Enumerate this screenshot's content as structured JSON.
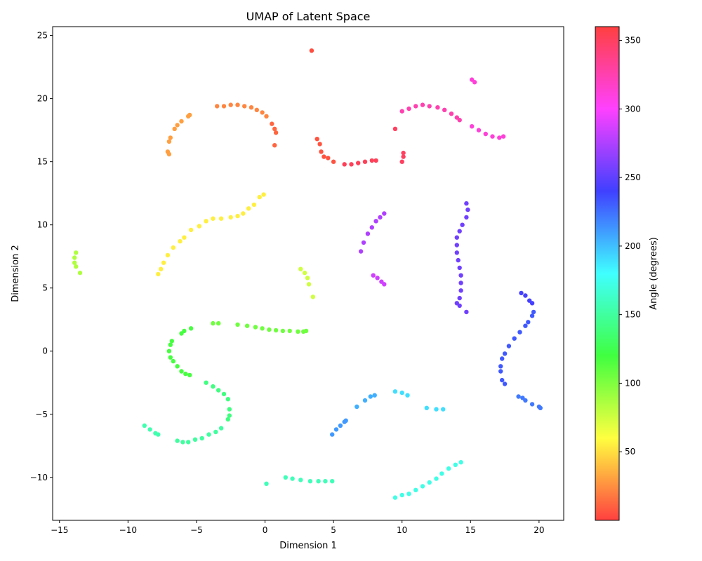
{
  "chart_data": {
    "type": "scatter",
    "title": "UMAP of Latent Space",
    "xlabel": "Dimension 1",
    "ylabel": "Dimension 2",
    "xlim": [
      -15.5,
      21.8
    ],
    "ylim": [
      -13.4,
      25.7
    ],
    "xticks": [
      -15,
      -10,
      -5,
      0,
      5,
      10,
      15,
      20
    ],
    "xtick_labels": [
      "−15",
      "−10",
      "−5",
      "0",
      "5",
      "10",
      "15",
      "20"
    ],
    "yticks": [
      -10,
      -5,
      0,
      5,
      10,
      15,
      20,
      25
    ],
    "ytick_labels": [
      "−10",
      "−5",
      "0",
      "5",
      "10",
      "15",
      "20",
      "25"
    ],
    "grid": false,
    "colormap": "hsv",
    "colorbar": {
      "label": "Angle (degrees)",
      "range": [
        0,
        360
      ],
      "ticks": [
        50,
        100,
        150,
        200,
        250,
        300,
        350
      ],
      "tick_labels": [
        "50",
        "100",
        "150",
        "200",
        "250",
        "300",
        "350"
      ]
    },
    "series": [
      {
        "angle": 4,
        "points": [
          [
            3.4,
            23.8
          ]
        ]
      },
      {
        "angle": 6,
        "points": [
          [
            3.8,
            16.8
          ],
          [
            4.0,
            16.4
          ],
          [
            4.1,
            15.8
          ],
          [
            4.3,
            15.4
          ],
          [
            4.6,
            15.3
          ],
          [
            5.0,
            15.0
          ]
        ]
      },
      {
        "angle": 352,
        "points": [
          [
            5.8,
            14.8
          ],
          [
            6.3,
            14.8
          ],
          [
            6.8,
            14.9
          ],
          [
            7.3,
            15.0
          ],
          [
            7.8,
            15.1
          ],
          [
            8.1,
            15.1
          ]
        ]
      },
      {
        "angle": 350,
        "points": [
          [
            9.5,
            17.6
          ],
          [
            10.0,
            15.0
          ],
          [
            10.1,
            15.4
          ],
          [
            10.1,
            15.7
          ]
        ]
      },
      {
        "angle": 12,
        "points": [
          [
            0.7,
            16.3
          ],
          [
            0.8,
            17.3
          ],
          [
            0.7,
            17.6
          ],
          [
            0.5,
            18.0
          ]
        ]
      },
      {
        "angle": 22,
        "points": [
          [
            -3.5,
            19.4
          ],
          [
            -3.0,
            19.4
          ],
          [
            -2.5,
            19.5
          ],
          [
            -2.0,
            19.5
          ],
          [
            -1.5,
            19.4
          ],
          [
            -1.0,
            19.3
          ],
          [
            -0.6,
            19.1
          ],
          [
            -0.2,
            18.9
          ],
          [
            0.1,
            18.6
          ]
        ]
      },
      {
        "angle": 30,
        "points": [
          [
            -7.0,
            15.6
          ],
          [
            -7.1,
            15.8
          ],
          [
            -7.0,
            16.6
          ],
          [
            -6.9,
            16.9
          ],
          [
            -6.6,
            17.6
          ],
          [
            -6.4,
            17.9
          ],
          [
            -6.1,
            18.2
          ],
          [
            -5.6,
            18.6
          ],
          [
            -5.5,
            18.7
          ]
        ]
      },
      {
        "angle": 55,
        "points": [
          [
            -0.1,
            12.4
          ],
          [
            -0.4,
            12.2
          ],
          [
            -0.8,
            11.6
          ],
          [
            -1.2,
            11.3
          ],
          [
            -1.6,
            10.9
          ],
          [
            -2.0,
            10.7
          ],
          [
            -2.5,
            10.6
          ],
          [
            -3.2,
            10.5
          ],
          [
            -3.8,
            10.5
          ],
          [
            -4.3,
            10.3
          ],
          [
            -4.8,
            9.9
          ],
          [
            -5.4,
            9.6
          ],
          [
            -5.9,
            9.0
          ],
          [
            -6.2,
            8.7
          ],
          [
            -6.7,
            8.2
          ],
          [
            -7.1,
            7.6
          ],
          [
            -7.4,
            7.0
          ],
          [
            -7.6,
            6.5
          ],
          [
            -7.8,
            6.1
          ]
        ]
      },
      {
        "angle": 75,
        "points": [
          [
            2.6,
            6.5
          ],
          [
            2.9,
            6.2
          ],
          [
            3.1,
            5.8
          ],
          [
            3.2,
            5.3
          ],
          [
            3.5,
            4.3
          ]
        ]
      },
      {
        "angle": 85,
        "points": [
          [
            -13.8,
            7.8
          ],
          [
            -13.9,
            7.4
          ],
          [
            -13.9,
            7.0
          ],
          [
            -13.8,
            6.7
          ],
          [
            -13.5,
            6.2
          ]
        ]
      },
      {
        "angle": 105,
        "points": [
          [
            -3.8,
            2.2
          ],
          [
            -3.4,
            2.2
          ],
          [
            -2.0,
            2.1
          ],
          [
            -1.3,
            2.0
          ],
          [
            -0.7,
            1.9
          ],
          [
            -0.2,
            1.8
          ],
          [
            0.3,
            1.7
          ],
          [
            0.8,
            1.65
          ],
          [
            1.3,
            1.6
          ],
          [
            1.8,
            1.6
          ],
          [
            2.4,
            1.55
          ],
          [
            2.8,
            1.55
          ],
          [
            3.0,
            1.6
          ]
        ]
      },
      {
        "angle": 118,
        "points": [
          [
            -5.4,
            1.8
          ],
          [
            -5.9,
            1.6
          ],
          [
            -6.1,
            1.4
          ],
          [
            -6.8,
            0.8
          ],
          [
            -6.9,
            0.5
          ],
          [
            -7.0,
            0.0
          ],
          [
            -6.9,
            -0.5
          ],
          [
            -6.7,
            -0.8
          ],
          [
            -6.4,
            -1.2
          ],
          [
            -6.1,
            -1.6
          ],
          [
            -5.8,
            -1.8
          ],
          [
            -5.5,
            -1.9
          ]
        ]
      },
      {
        "angle": 140,
        "points": [
          [
            -4.3,
            -2.5
          ],
          [
            -3.8,
            -2.8
          ],
          [
            -3.4,
            -3.1
          ],
          [
            -3.0,
            -3.4
          ],
          [
            -2.7,
            -3.8
          ],
          [
            -2.6,
            -4.6
          ],
          [
            -2.6,
            -5.1
          ],
          [
            -2.7,
            -5.4
          ]
        ]
      },
      {
        "angle": 150,
        "points": [
          [
            -3.2,
            -6.1
          ],
          [
            -3.6,
            -6.4
          ],
          [
            -4.1,
            -6.6
          ],
          [
            -4.6,
            -6.9
          ],
          [
            -5.1,
            -7.0
          ],
          [
            -5.6,
            -7.2
          ],
          [
            -6.0,
            -7.2
          ],
          [
            -6.4,
            -7.1
          ]
        ]
      },
      {
        "angle": 155,
        "points": [
          [
            -8.8,
            -5.9
          ],
          [
            -8.4,
            -6.2
          ],
          [
            -8.0,
            -6.5
          ],
          [
            -7.8,
            -6.6
          ]
        ]
      },
      {
        "angle": 158,
        "points": [
          [
            0.1,
            -10.5
          ],
          [
            1.5,
            -10.0
          ],
          [
            2.0,
            -10.1
          ],
          [
            2.6,
            -10.2
          ],
          [
            3.3,
            -10.3
          ],
          [
            3.9,
            -10.3
          ],
          [
            4.4,
            -10.3
          ],
          [
            4.9,
            -10.3
          ]
        ]
      },
      {
        "angle": 172,
        "points": [
          [
            9.5,
            -11.6
          ],
          [
            10.0,
            -11.4
          ],
          [
            10.5,
            -11.3
          ],
          [
            11.0,
            -11.0
          ],
          [
            11.5,
            -10.7
          ],
          [
            12.0,
            -10.4
          ],
          [
            12.5,
            -10.1
          ],
          [
            12.9,
            -9.7
          ],
          [
            13.4,
            -9.3
          ],
          [
            13.9,
            -9.0
          ],
          [
            14.3,
            -8.8
          ]
        ]
      },
      {
        "angle": 190,
        "points": [
          [
            9.5,
            -3.2
          ],
          [
            10.0,
            -3.3
          ],
          [
            10.4,
            -3.5
          ],
          [
            11.8,
            -4.5
          ],
          [
            12.5,
            -4.6
          ],
          [
            13.0,
            -4.6
          ]
        ]
      },
      {
        "angle": 205,
        "points": [
          [
            6.7,
            -4.4
          ],
          [
            7.3,
            -3.9
          ],
          [
            7.7,
            -3.6
          ],
          [
            8.0,
            -3.5
          ]
        ]
      },
      {
        "angle": 212,
        "points": [
          [
            4.9,
            -6.6
          ],
          [
            5.2,
            -6.2
          ],
          [
            5.5,
            -5.9
          ],
          [
            5.8,
            -5.6
          ],
          [
            5.9,
            -5.5
          ]
        ]
      },
      {
        "angle": 222,
        "points": [
          [
            18.5,
            -3.6
          ],
          [
            18.8,
            -3.7
          ],
          [
            19.0,
            -3.9
          ],
          [
            19.5,
            -4.2
          ],
          [
            20.0,
            -4.4
          ],
          [
            20.1,
            -4.5
          ]
        ]
      },
      {
        "angle": 232,
        "points": [
          [
            17.5,
            -2.6
          ],
          [
            17.3,
            -2.3
          ],
          [
            17.2,
            -1.6
          ],
          [
            17.2,
            -1.2
          ],
          [
            17.3,
            -0.6
          ],
          [
            17.5,
            -0.2
          ],
          [
            17.8,
            0.4
          ],
          [
            18.2,
            1.0
          ],
          [
            18.6,
            1.5
          ],
          [
            19.0,
            2.0
          ],
          [
            19.2,
            2.3
          ],
          [
            19.5,
            2.8
          ],
          [
            19.6,
            3.1
          ]
        ]
      },
      {
        "angle": 242,
        "points": [
          [
            18.7,
            4.6
          ],
          [
            19.0,
            4.4
          ],
          [
            19.3,
            4.0
          ],
          [
            19.5,
            3.8
          ]
        ]
      },
      {
        "angle": 255,
        "points": [
          [
            14.2,
            3.6
          ],
          [
            14.0,
            3.8
          ],
          [
            14.2,
            4.2
          ],
          [
            14.3,
            4.8
          ],
          [
            14.3,
            5.4
          ],
          [
            14.3,
            6.0
          ],
          [
            14.2,
            6.6
          ],
          [
            14.1,
            7.2
          ],
          [
            14.0,
            7.8
          ],
          [
            14.0,
            8.4
          ],
          [
            14.0,
            9.0
          ],
          [
            14.2,
            9.5
          ],
          [
            14.4,
            10.0
          ],
          [
            14.7,
            10.6
          ],
          [
            14.8,
            11.2
          ],
          [
            14.7,
            11.7
          ],
          [
            14.7,
            3.1
          ]
        ]
      },
      {
        "angle": 275,
        "points": [
          [
            7.0,
            7.9
          ],
          [
            7.2,
            8.6
          ],
          [
            7.5,
            9.3
          ],
          [
            7.8,
            9.8
          ],
          [
            8.1,
            10.3
          ],
          [
            8.4,
            10.6
          ],
          [
            8.7,
            10.9
          ]
        ]
      },
      {
        "angle": 285,
        "points": [
          [
            7.9,
            6.0
          ],
          [
            8.2,
            5.8
          ],
          [
            8.5,
            5.5
          ],
          [
            8.7,
            5.3
          ]
        ]
      },
      {
        "angle": 312,
        "points": [
          [
            15.1,
            17.8
          ],
          [
            15.6,
            17.5
          ],
          [
            16.1,
            17.2
          ],
          [
            16.6,
            17.0
          ],
          [
            17.1,
            16.9
          ],
          [
            17.4,
            17.0
          ],
          [
            15.1,
            21.5
          ],
          [
            15.3,
            21.3
          ]
        ]
      },
      {
        "angle": 325,
        "points": [
          [
            10.0,
            19.0
          ],
          [
            10.5,
            19.2
          ],
          [
            11.0,
            19.4
          ],
          [
            11.5,
            19.5
          ],
          [
            12.0,
            19.4
          ],
          [
            12.6,
            19.3
          ],
          [
            13.1,
            19.1
          ],
          [
            13.6,
            18.8
          ],
          [
            14.0,
            18.5
          ],
          [
            14.2,
            18.3
          ]
        ]
      }
    ]
  }
}
